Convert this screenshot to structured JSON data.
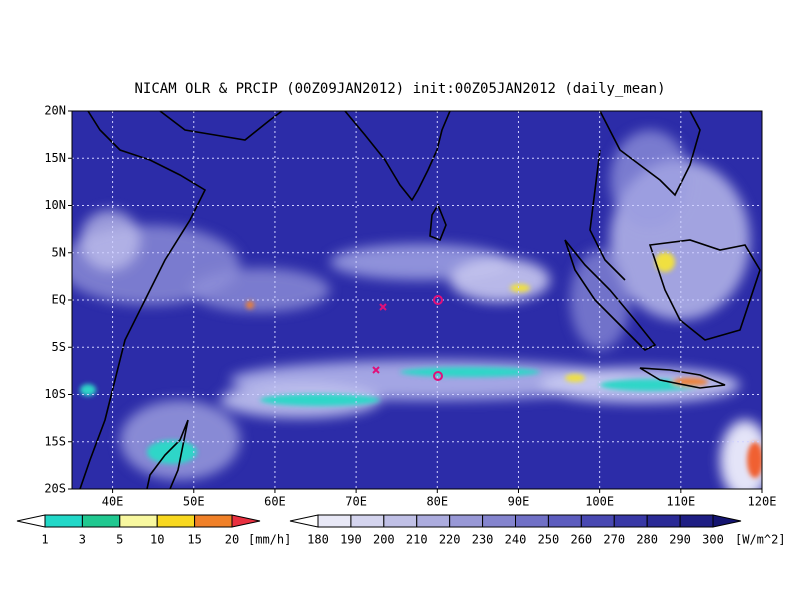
{
  "title": "NICAM OLR & PRCIP (00Z09JAN2012) init:00Z05JAN2012 (daily_mean)",
  "map": {
    "lat_labels": [
      "20N",
      "15N",
      "10N",
      "5N",
      "EQ",
      "5S",
      "10S",
      "15S",
      "20S"
    ],
    "lon_labels": [
      "40E",
      "50E",
      "60E",
      "70E",
      "80E",
      "90E",
      "100E",
      "110E",
      "120E"
    ]
  },
  "precip_legend": {
    "labels": [
      "1",
      "3",
      "5",
      "10",
      "15",
      "20"
    ],
    "unit": "[mm/h]"
  },
  "olr_legend": {
    "labels": [
      "180",
      "190",
      "200",
      "210",
      "220",
      "230",
      "240",
      "250",
      "260",
      "270",
      "280",
      "290",
      "300"
    ],
    "unit": "[W/m^2]"
  }
}
